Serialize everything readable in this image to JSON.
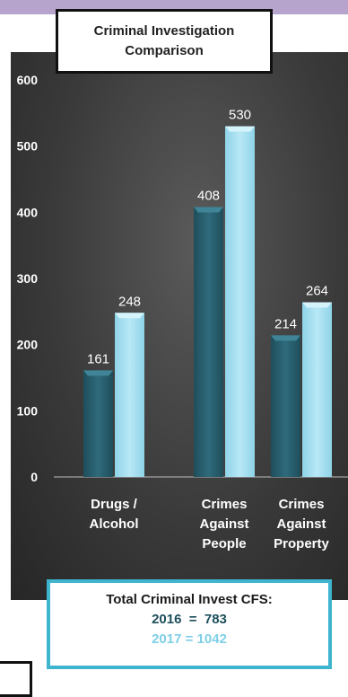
{
  "chart_data": {
    "type": "bar",
    "title": "Criminal Investigation Comparison",
    "categories": [
      [
        "Drugs /",
        "Alcohol"
      ],
      [
        "Crimes",
        "Against",
        "People"
      ],
      [
        "Crimes",
        "Against",
        "Property"
      ]
    ],
    "series": [
      {
        "values": [
          161,
          408,
          214
        ],
        "color": "#2b6272"
      },
      {
        "values": [
          248,
          530,
          264
        ],
        "color": "#9fdcee"
      }
    ],
    "ylim": [
      0,
      600
    ],
    "yticks": [
      0,
      100,
      200,
      300,
      400,
      500,
      600
    ],
    "grid": false
  },
  "title_lines": [
    "Criminal Investigation",
    "Comparison"
  ],
  "summary": {
    "line1": "Total Criminal Invest CFS:",
    "line2": "2016  =  783",
    "line3": "2017 = 1042"
  }
}
